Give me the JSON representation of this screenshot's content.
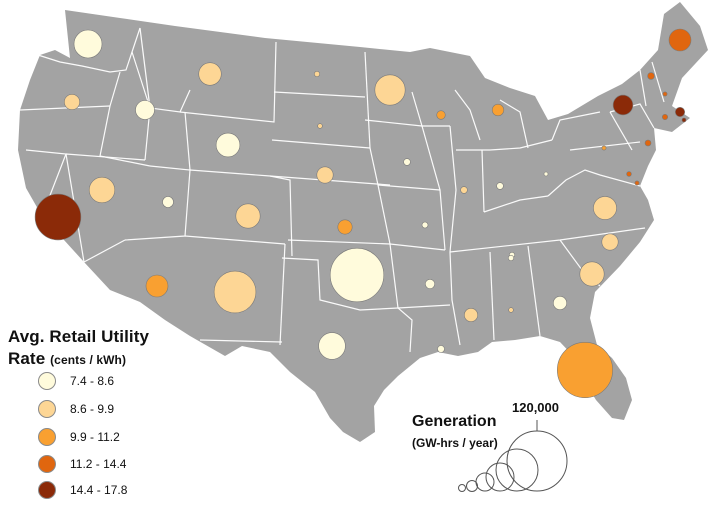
{
  "legend": {
    "title": "Avg. Retail Utility",
    "title_line2": "Rate",
    "units": "(cents / kWh)",
    "items": [
      {
        "label": "7.4 - 8.6",
        "color": "#fffbdc"
      },
      {
        "label": "8.6 - 9.9",
        "color": "#fdd695"
      },
      {
        "label": "9.9 - 11.2",
        "color": "#f9a031"
      },
      {
        "label": "11.2 - 14.4",
        "color": "#e0660f"
      },
      {
        "label": "14.4 - 17.8",
        "color": "#8b2a08"
      }
    ]
  },
  "generation_legend": {
    "title": "Generation",
    "units": "(GW-hrs / year)",
    "max_label": "120,000"
  },
  "map_colors": {
    "land": "#a3a3a3",
    "borders": "#ffffff"
  },
  "chart_data": {
    "type": "bubble-map",
    "size_metric": "Generation (GW-hrs / year)",
    "color_metric": "Avg. Retail Utility Rate (cents / kWh)",
    "size_scale_max": 120000,
    "bins": [
      "7.4 - 8.6",
      "8.6 - 9.9",
      "9.9 - 11.2",
      "11.2 - 14.4",
      "14.4 - 17.8"
    ],
    "states": [
      {
        "state": "WA",
        "bin": 0,
        "generation": 26000
      },
      {
        "state": "OR",
        "bin": 1,
        "generation": 8000
      },
      {
        "state": "CA",
        "bin": 4,
        "generation": 70000
      },
      {
        "state": "NV",
        "bin": 1,
        "generation": 22000
      },
      {
        "state": "ID",
        "bin": 0,
        "generation": 12000
      },
      {
        "state": "MT",
        "bin": 1,
        "generation": 17000
      },
      {
        "state": "WY",
        "bin": 0,
        "generation": 19000
      },
      {
        "state": "UT",
        "bin": 0,
        "generation": 4000
      },
      {
        "state": "AZ",
        "bin": 2,
        "generation": 16000
      },
      {
        "state": "CO",
        "bin": 1,
        "generation": 20000
      },
      {
        "state": "NM",
        "bin": 1,
        "generation": 58000
      },
      {
        "state": "ND",
        "bin": 1,
        "generation": 1000
      },
      {
        "state": "SD",
        "bin": 1,
        "generation": 800
      },
      {
        "state": "NE",
        "bin": 1,
        "generation": 9000
      },
      {
        "state": "KS",
        "bin": 2,
        "generation": 7000
      },
      {
        "state": "OK",
        "bin": 0,
        "generation": 96000
      },
      {
        "state": "TX",
        "bin": 0,
        "generation": 24000
      },
      {
        "state": "MN",
        "bin": 1,
        "generation": 31000
      },
      {
        "state": "IA",
        "bin": 0,
        "generation": 1500
      },
      {
        "state": "MO",
        "bin": 0,
        "generation": 1200
      },
      {
        "state": "AR",
        "bin": 0,
        "generation": 3000
      },
      {
        "state": "LA",
        "bin": 0,
        "generation": 1600
      },
      {
        "state": "WI",
        "bin": 2,
        "generation": 2500
      },
      {
        "state": "IL",
        "bin": 1,
        "generation": 1500
      },
      {
        "state": "MS",
        "bin": 1,
        "generation": 6000
      },
      {
        "state": "MI",
        "bin": 2,
        "generation": 4500
      },
      {
        "state": "IN",
        "bin": 0,
        "generation": 1500
      },
      {
        "state": "KY",
        "bin": 0,
        "generation": 1000
      },
      {
        "state": "TN",
        "bin": 0,
        "generation": 1000
      },
      {
        "state": "AL",
        "bin": 1,
        "generation": 800
      },
      {
        "state": "GA",
        "bin": 0,
        "generation": 6000
      },
      {
        "state": "FL",
        "bin": 2,
        "generation": 102000
      },
      {
        "state": "SC",
        "bin": 1,
        "generation": 20000
      },
      {
        "state": "NC",
        "bin": 1,
        "generation": 9000
      },
      {
        "state": "VA",
        "bin": 1,
        "generation": 18000
      },
      {
        "state": "OH",
        "bin": 0,
        "generation": 500
      },
      {
        "state": "PA",
        "bin": 2,
        "generation": 600
      },
      {
        "state": "NY",
        "bin": 4,
        "generation": 13000
      },
      {
        "state": "ME",
        "bin": 3,
        "generation": 16000
      },
      {
        "state": "VT",
        "bin": 3,
        "generation": 1500
      },
      {
        "state": "NH",
        "bin": 3,
        "generation": 600
      },
      {
        "state": "MA",
        "bin": 4,
        "generation": 3000
      },
      {
        "state": "CT",
        "bin": 3,
        "generation": 1000
      },
      {
        "state": "RI",
        "bin": 4,
        "generation": 500
      },
      {
        "state": "NJ",
        "bin": 3,
        "generation": 1200
      },
      {
        "state": "MD",
        "bin": 3,
        "generation": 800
      },
      {
        "state": "DE",
        "bin": 3,
        "generation": 600
      }
    ]
  }
}
